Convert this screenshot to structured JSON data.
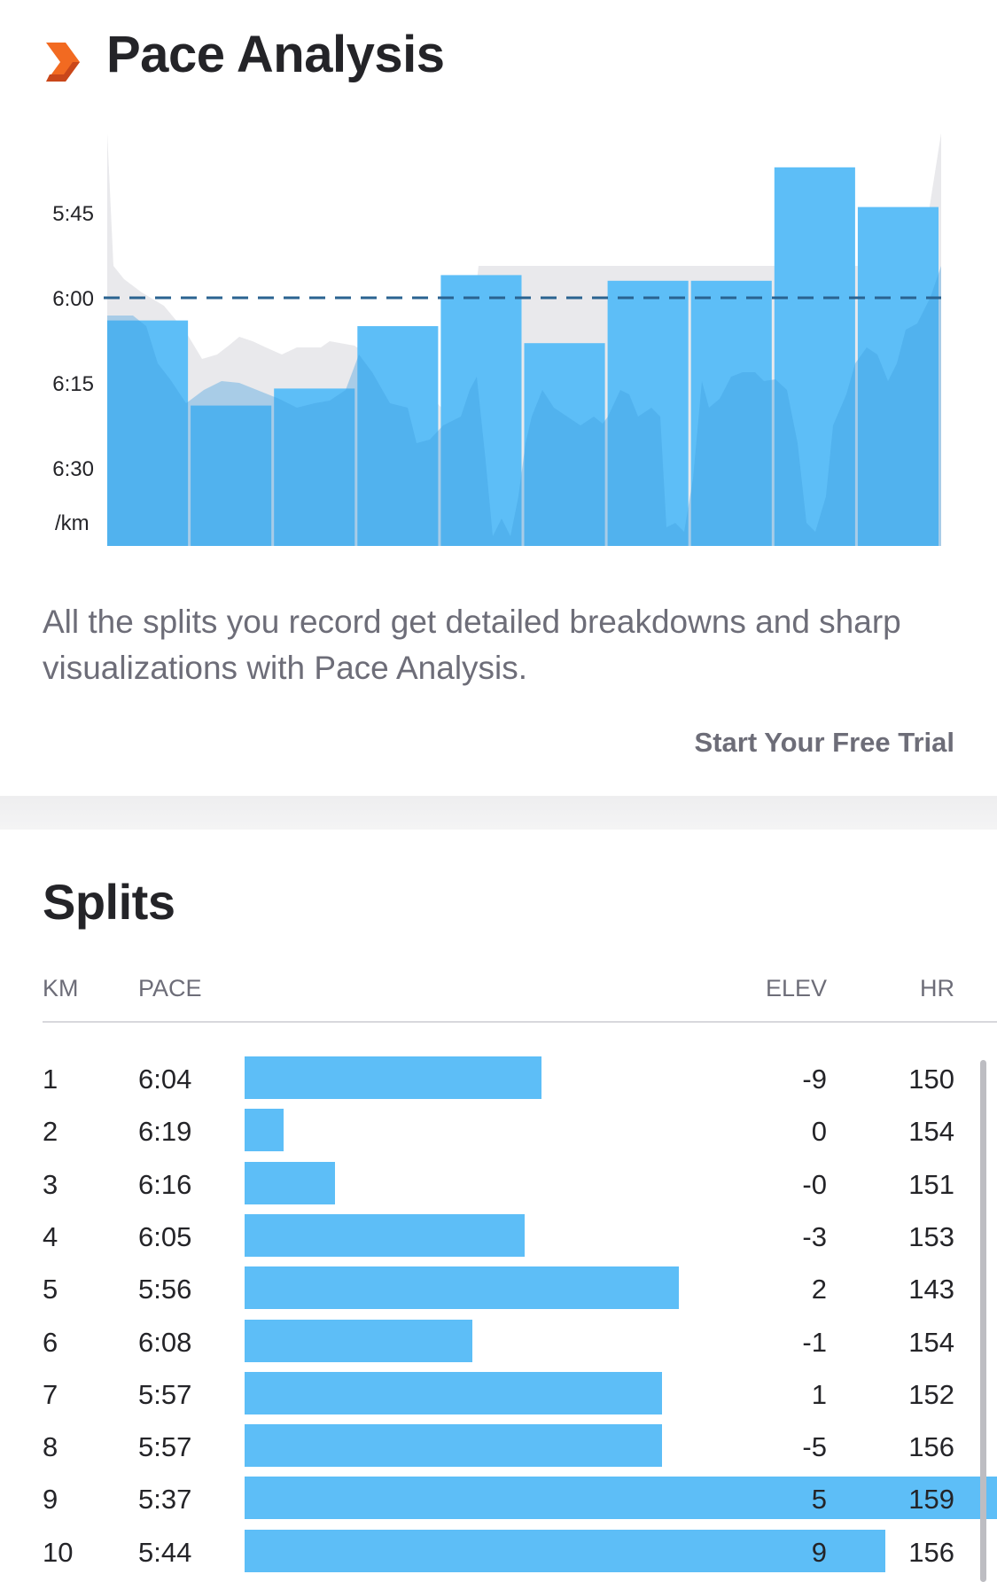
{
  "pace_analysis": {
    "title": "Pace Analysis",
    "logo_icon": "chevron-arrow-icon",
    "description": "All the splits you record get detailed breakdowns and sharp visualizations with Pace Analysis.",
    "cta_label": "Start Your Free Trial"
  },
  "chart_data": {
    "type": "bar",
    "ylabel": "/km",
    "y_ticks": [
      "5:45",
      "6:00",
      "6:15",
      "6:30"
    ],
    "y_tick_seconds": [
      345,
      360,
      375,
      390
    ],
    "y_inverted": true,
    "reference_line": "6:00",
    "categories": [
      "1",
      "2",
      "3",
      "4",
      "5",
      "6",
      "7",
      "8",
      "9",
      "10"
    ],
    "values_pace": [
      "6:04",
      "6:19",
      "6:16",
      "6:05",
      "5:56",
      "6:08",
      "5:57",
      "5:57",
      "5:37",
      "5:44"
    ],
    "values_seconds": [
      364,
      379,
      376,
      365,
      356,
      368,
      357,
      357,
      337,
      344
    ],
    "bar_color": "#5dbef7",
    "elevation_fill_color": "#e9e9ec",
    "grid": false
  },
  "splits": {
    "title": "Splits",
    "headers": {
      "km": "KM",
      "pace": "PACE",
      "elev": "ELEV",
      "hr": "HR"
    },
    "rows": [
      {
        "km": "1",
        "pace": "6:04",
        "pace_seconds": 364,
        "elev": "-9",
        "hr": "150"
      },
      {
        "km": "2",
        "pace": "6:19",
        "pace_seconds": 379,
        "elev": "0",
        "hr": "154"
      },
      {
        "km": "3",
        "pace": "6:16",
        "pace_seconds": 376,
        "elev": "-0",
        "hr": "151"
      },
      {
        "km": "4",
        "pace": "6:05",
        "pace_seconds": 365,
        "elev": "-3",
        "hr": "153"
      },
      {
        "km": "5",
        "pace": "5:56",
        "pace_seconds": 356,
        "elev": "2",
        "hr": "143"
      },
      {
        "km": "6",
        "pace": "6:08",
        "pace_seconds": 368,
        "elev": "-1",
        "hr": "154"
      },
      {
        "km": "7",
        "pace": "5:57",
        "pace_seconds": 357,
        "elev": "1",
        "hr": "152"
      },
      {
        "km": "8",
        "pace": "5:57",
        "pace_seconds": 357,
        "elev": "-5",
        "hr": "156"
      },
      {
        "km": "9",
        "pace": "5:37",
        "pace_seconds": 337,
        "elev": "5",
        "hr": "159"
      },
      {
        "km": "10",
        "pace": "5:44",
        "pace_seconds": 344,
        "elev": "9",
        "hr": "156"
      }
    ]
  }
}
